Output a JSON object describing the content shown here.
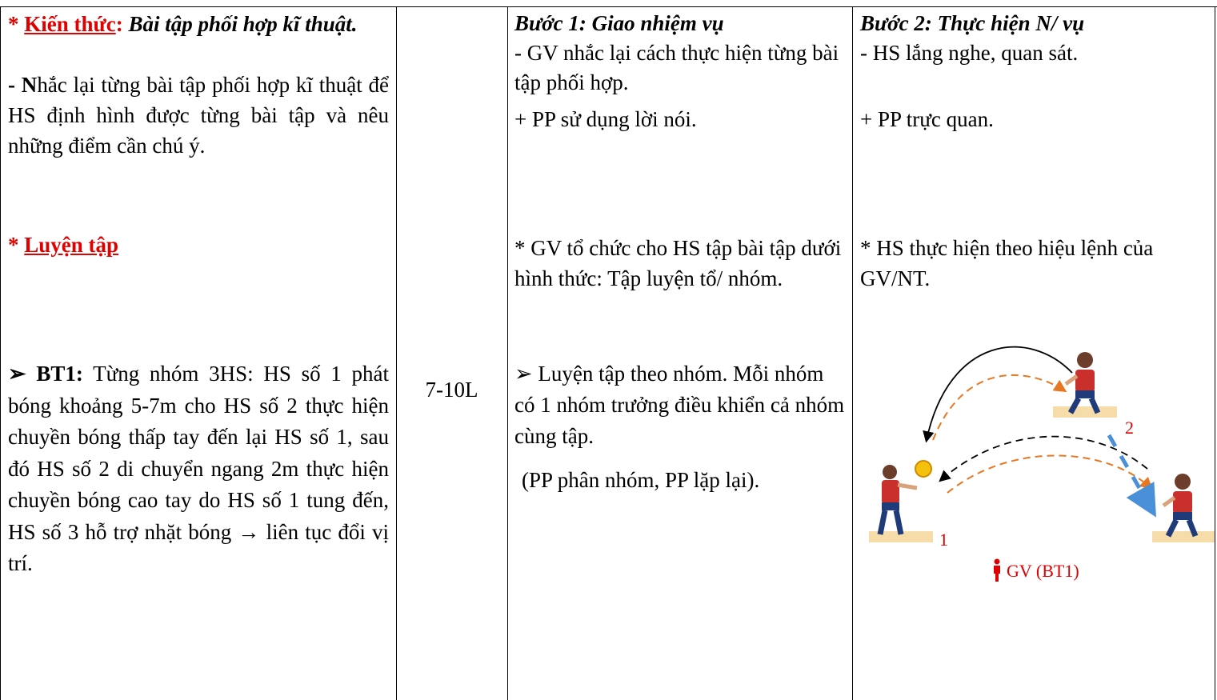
{
  "cells": [
    {
      "blocks": [
        [
          "* ",
          "Kiến thức",
          ":",
          "Bài tập phối hợp kĩ thuật."
        ],
        [
          "- N",
          "hắc lại từng bài tập phối hợp kĩ thuật để HS định hình được từng bài tập và nêu những điểm cần chú ý."
        ],
        [
          "* ",
          "Luyện tập"
        ],
        [
          "➢ BT1:",
          "Từng nhóm 3HS: HS số 1 phát bóng khoảng 5-7m cho HS số 2 thực hiện chuyền bóng thấp tay đến lại HS số 1, sau đó HS số 2 di chuyển ngang 2m thực hiện chuyền bóng cao tay do HS số 1 tung đến, HS số 3 hỗ trợ nhặt bóng",
          "→",
          "liên tục đổi vị trí."
        ]
      ]
    },
    {
      "blocks": [
        [
          "7-10L"
        ]
      ]
    },
    {
      "blocks": [
        [
          "Bước 1: Giao nhiệm vụ"
        ],
        [
          "- GV nhắc lại cách thực hiện từng bài tập phối hợp."
        ],
        [
          "+ PP sử dụng lời nói."
        ],
        [
          "* GV tổ chức cho HS tập bài tập dưới hình thức: Tập luyện tổ/ nhóm."
        ],
        [
          "➢ Luyện tập theo nhóm. Mỗi nhóm có 1 nhóm trưởng điều khiển cả nhóm cùng tập."
        ],
        [
          "(PP phân nhóm, PP lặp lại)."
        ]
      ]
    },
    {
      "blocks": [
        [
          "Bước 2: Thực hiện N/ vụ"
        ],
        [
          "- HS lắng nghe, quan sát."
        ],
        [
          "+ PP trực quan."
        ],
        [
          "* HS thực hiện theo hiệu lệnh của GV/NT."
        ]
      ],
      "figure": {
        "labels": [
          "2",
          "1"
        ],
        "teacher": "GV (BT1)"
      }
    }
  ]
}
